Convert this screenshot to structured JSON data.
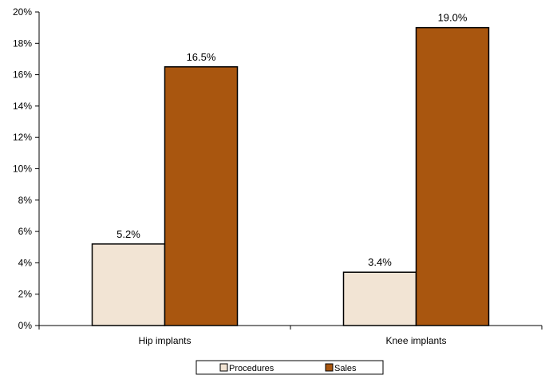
{
  "chart_data": {
    "type": "bar",
    "title": "",
    "xlabel": "",
    "ylabel": "",
    "categories": [
      "Hip implants",
      "Knee implants"
    ],
    "series": [
      {
        "name": "Procedures",
        "values": [
          5.2,
          3.4
        ],
        "labels": [
          "5.2%",
          "3.4%"
        ],
        "color": "#f2e4d4"
      },
      {
        "name": "Sales",
        "values": [
          16.5,
          19.0
        ],
        "labels": [
          "16.5%",
          "19.0%"
        ],
        "color": "#a9560f"
      }
    ],
    "ylim": [
      0,
      20
    ],
    "yticks": [
      0,
      2,
      4,
      6,
      8,
      10,
      12,
      14,
      16,
      18,
      20
    ],
    "ytick_labels": [
      "0%",
      "2%",
      "4%",
      "6%",
      "8%",
      "10%",
      "12%",
      "14%",
      "16%",
      "18%",
      "20%"
    ],
    "grid": false,
    "legend": "bottom"
  }
}
